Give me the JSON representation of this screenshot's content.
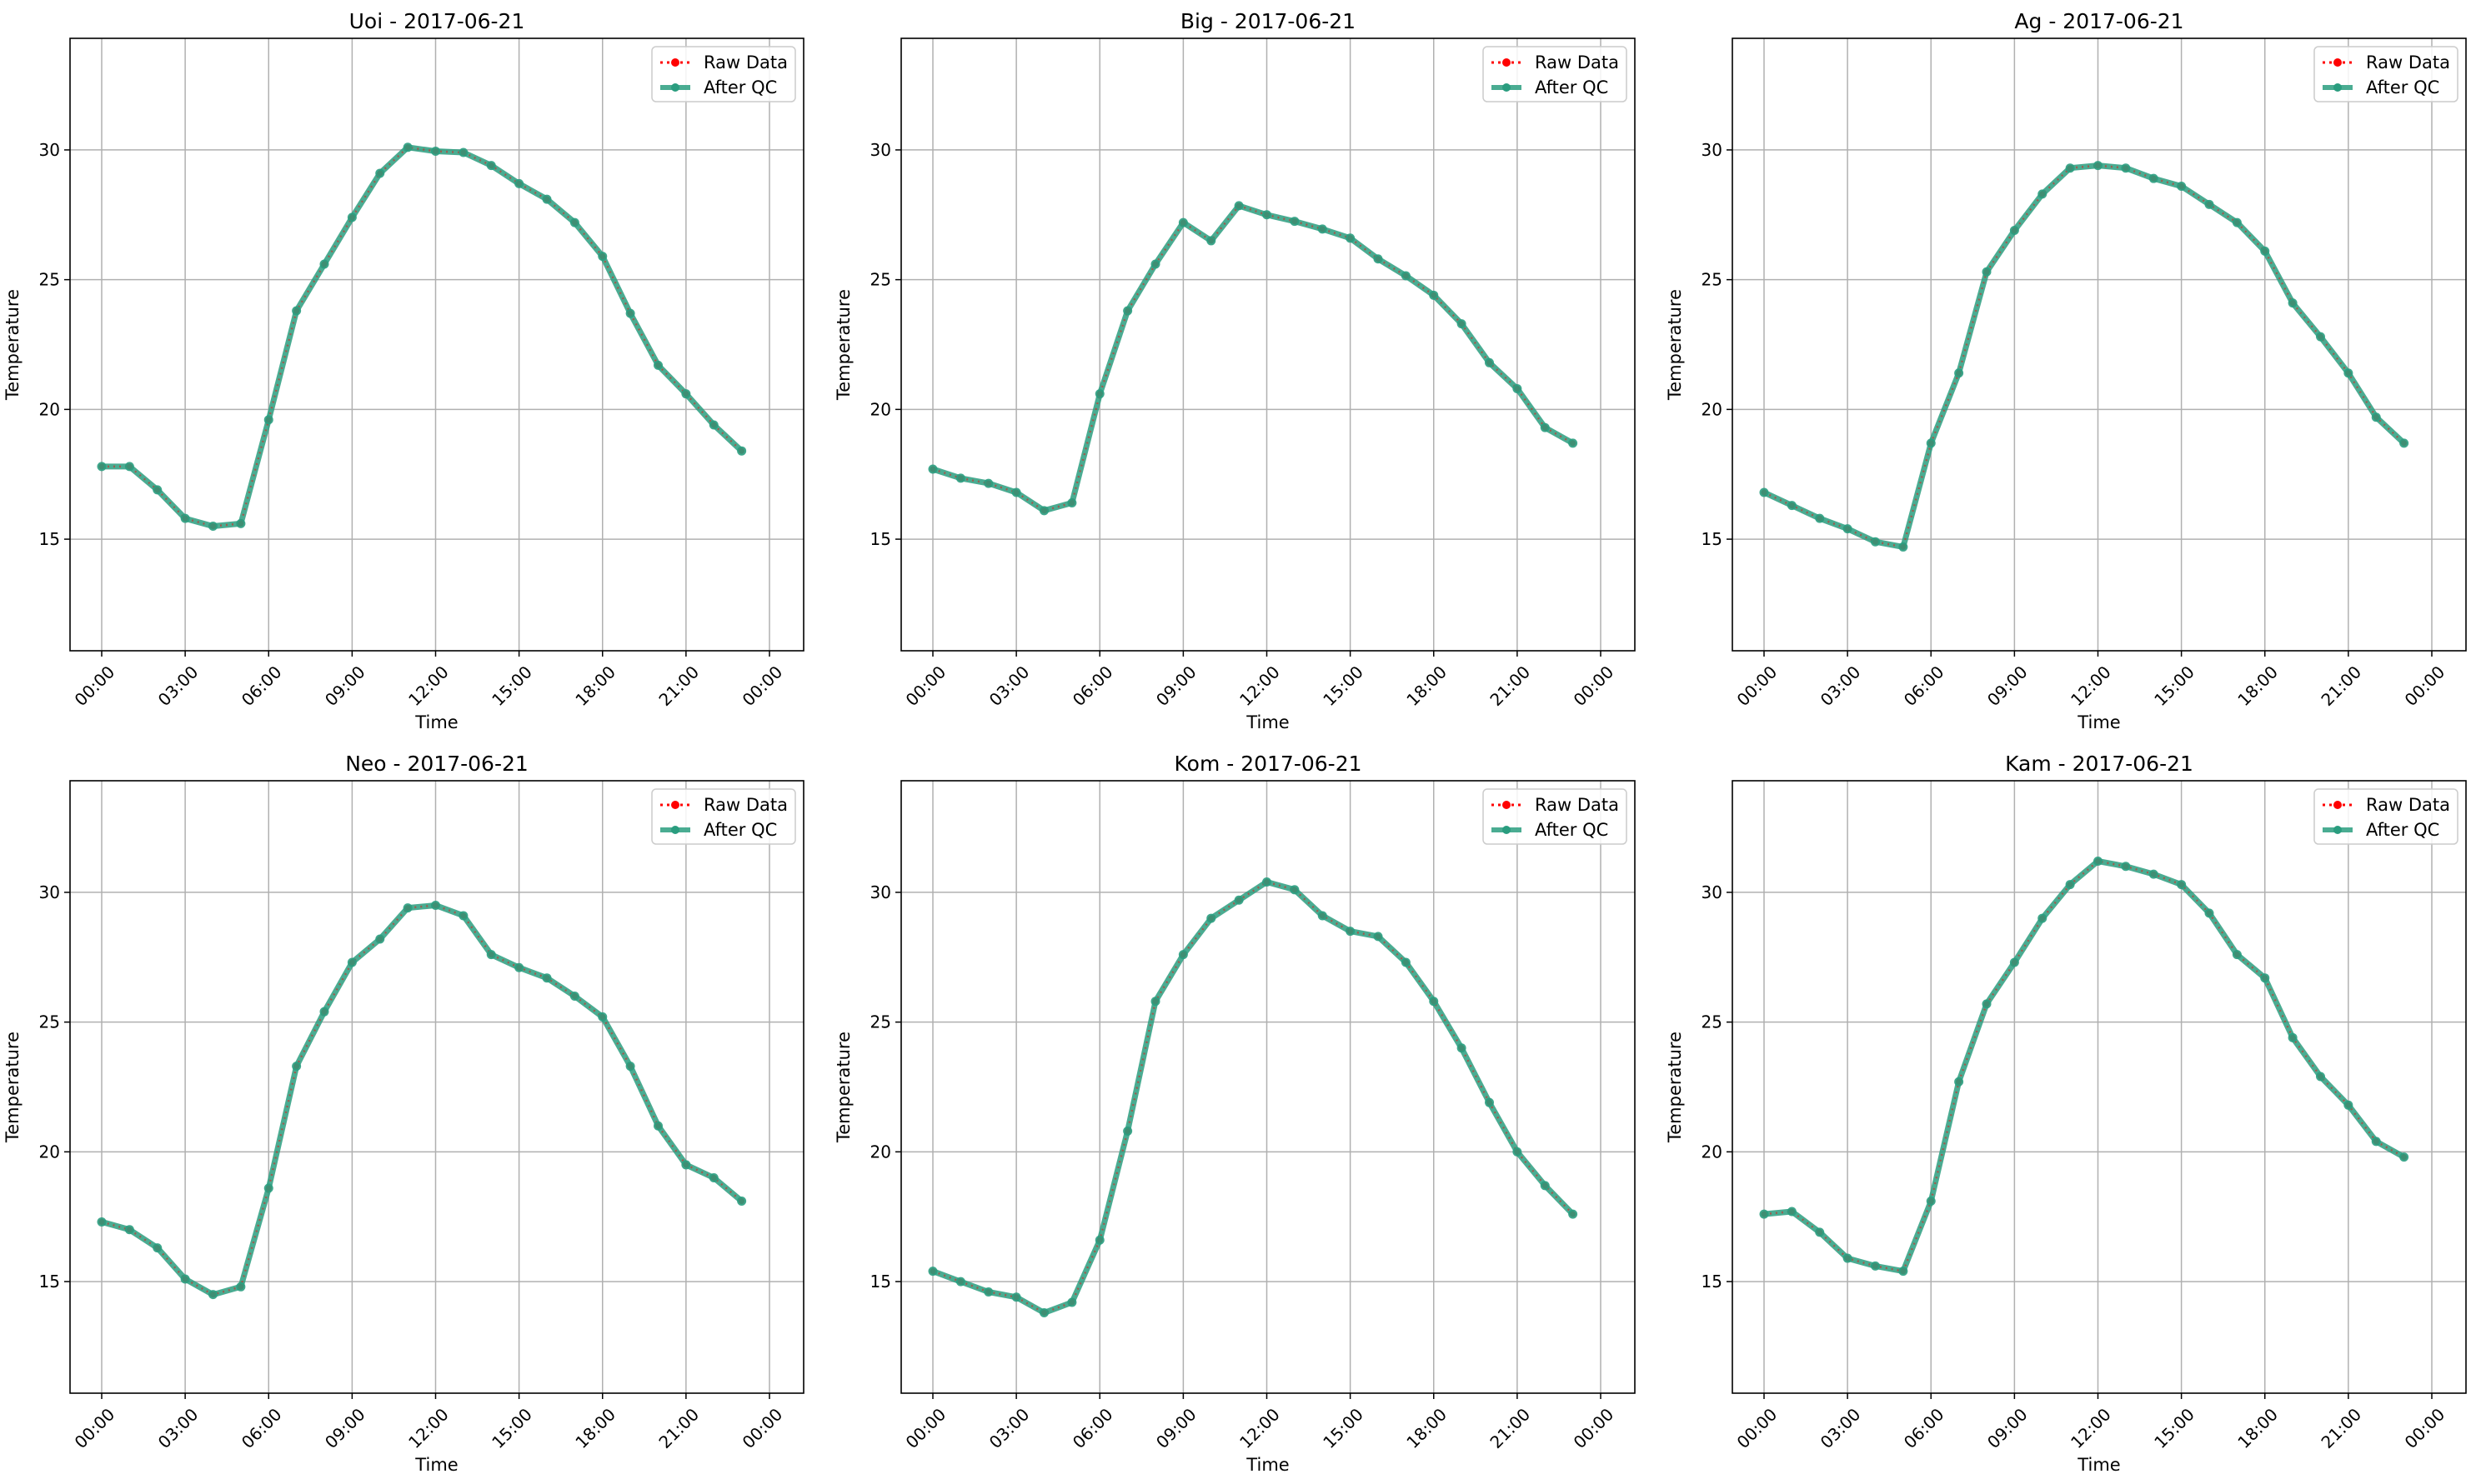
{
  "figure": {
    "xlabel": "Time",
    "ylabel": "Temperature"
  },
  "legend": [
    "Raw Data",
    "After QC"
  ],
  "colors": {
    "raw": "#ff0000",
    "qc": "#2a9d7f",
    "grid": "#b0b0b0"
  },
  "chart_data": [
    {
      "type": "line",
      "title": "Uoi - 2017-06-21",
      "xlabel": "Time",
      "ylabel": "Temperature",
      "x_ticks": [
        "00:00",
        "03:00",
        "06:00",
        "09:00",
        "12:00",
        "15:00",
        "18:00",
        "21:00",
        "00:00"
      ],
      "y_ticks": [
        15,
        20,
        25,
        30
      ],
      "ylim": [
        10.7,
        34.3
      ],
      "grid": true,
      "legend_position": "top-right",
      "x_hours": [
        0,
        1,
        2,
        3,
        4,
        5,
        6,
        7,
        8,
        9,
        10,
        11,
        12,
        13,
        14,
        15,
        16,
        17,
        18,
        19,
        20,
        21,
        22,
        23
      ],
      "series": [
        {
          "name": "Raw Data",
          "values": [
            17.8,
            17.8,
            16.9,
            15.8,
            15.5,
            15.6,
            19.6,
            23.8,
            25.6,
            27.4,
            29.1,
            30.1,
            29.95,
            29.9,
            29.4,
            28.7,
            28.1,
            27.2,
            25.9,
            23.7,
            21.7,
            20.6,
            19.4,
            18.4
          ]
        },
        {
          "name": "After QC",
          "values": [
            17.8,
            17.8,
            16.9,
            15.8,
            15.5,
            15.6,
            19.6,
            23.8,
            25.6,
            27.4,
            29.1,
            30.1,
            29.95,
            29.9,
            29.4,
            28.7,
            28.1,
            27.2,
            25.9,
            23.7,
            21.7,
            20.6,
            19.4,
            18.4
          ]
        }
      ]
    },
    {
      "type": "line",
      "title": "Big - 2017-06-21",
      "xlabel": "Time",
      "ylabel": "Temperature",
      "x_ticks": [
        "00:00",
        "03:00",
        "06:00",
        "09:00",
        "12:00",
        "15:00",
        "18:00",
        "21:00",
        "00:00"
      ],
      "y_ticks": [
        15,
        20,
        25,
        30
      ],
      "ylim": [
        10.7,
        34.3
      ],
      "grid": true,
      "legend_position": "top-right",
      "x_hours": [
        0,
        1,
        2,
        3,
        4,
        5,
        6,
        7,
        8,
        9,
        10,
        11,
        12,
        13,
        14,
        15,
        16,
        17,
        18,
        19,
        20,
        21,
        22,
        23
      ],
      "series": [
        {
          "name": "Raw Data",
          "values": [
            17.7,
            17.35,
            17.15,
            16.8,
            16.1,
            16.4,
            20.6,
            23.8,
            25.6,
            27.2,
            26.5,
            27.85,
            27.5,
            27.25,
            26.95,
            26.6,
            25.8,
            25.15,
            24.4,
            23.3,
            21.8,
            20.8,
            19.3,
            18.7
          ]
        },
        {
          "name": "After QC",
          "values": [
            17.7,
            17.35,
            17.15,
            16.8,
            16.1,
            16.4,
            20.6,
            23.8,
            25.6,
            27.2,
            26.5,
            27.85,
            27.5,
            27.25,
            26.95,
            26.6,
            25.8,
            25.15,
            24.4,
            23.3,
            21.8,
            20.8,
            19.3,
            18.7
          ]
        }
      ]
    },
    {
      "type": "line",
      "title": "Ag - 2017-06-21",
      "xlabel": "Time",
      "ylabel": "Temperature",
      "x_ticks": [
        "00:00",
        "03:00",
        "06:00",
        "09:00",
        "12:00",
        "15:00",
        "18:00",
        "21:00",
        "00:00"
      ],
      "y_ticks": [
        15,
        20,
        25,
        30
      ],
      "ylim": [
        10.7,
        34.3
      ],
      "grid": true,
      "legend_position": "top-right",
      "x_hours": [
        0,
        1,
        2,
        3,
        4,
        5,
        6,
        7,
        8,
        9,
        10,
        11,
        12,
        13,
        14,
        15,
        16,
        17,
        18,
        19,
        20,
        21,
        22,
        23
      ],
      "series": [
        {
          "name": "Raw Data",
          "values": [
            16.8,
            16.3,
            15.8,
            15.4,
            14.9,
            14.7,
            18.7,
            21.4,
            25.3,
            26.9,
            28.3,
            29.3,
            29.4,
            29.3,
            28.9,
            28.6,
            27.9,
            27.2,
            26.1,
            24.1,
            22.8,
            21.4,
            19.7,
            18.7
          ]
        },
        {
          "name": "After QC",
          "values": [
            16.8,
            16.3,
            15.8,
            15.4,
            14.9,
            14.7,
            18.7,
            21.4,
            25.3,
            26.9,
            28.3,
            29.3,
            29.4,
            29.3,
            28.9,
            28.6,
            27.9,
            27.2,
            26.1,
            24.1,
            22.8,
            21.4,
            19.7,
            18.7
          ]
        }
      ]
    },
    {
      "type": "line",
      "title": "Neo - 2017-06-21",
      "xlabel": "Time",
      "ylabel": "Temperature",
      "x_ticks": [
        "00:00",
        "03:00",
        "06:00",
        "09:00",
        "12:00",
        "15:00",
        "18:00",
        "21:00",
        "00:00"
      ],
      "y_ticks": [
        15,
        20,
        25,
        30
      ],
      "ylim": [
        10.7,
        34.3
      ],
      "grid": true,
      "legend_position": "top-right",
      "x_hours": [
        0,
        1,
        2,
        3,
        4,
        5,
        6,
        7,
        8,
        9,
        10,
        11,
        12,
        13,
        14,
        15,
        16,
        17,
        18,
        19,
        20,
        21,
        22,
        23
      ],
      "series": [
        {
          "name": "Raw Data",
          "values": [
            17.3,
            17.0,
            16.3,
            15.1,
            14.5,
            14.8,
            18.6,
            23.3,
            25.4,
            27.3,
            28.2,
            29.4,
            29.5,
            29.1,
            27.6,
            27.1,
            26.7,
            26.0,
            25.2,
            23.3,
            21.0,
            19.5,
            19.0,
            18.1
          ]
        },
        {
          "name": "After QC",
          "values": [
            17.3,
            17.0,
            16.3,
            15.1,
            14.5,
            14.8,
            18.6,
            23.3,
            25.4,
            27.3,
            28.2,
            29.4,
            29.5,
            29.1,
            27.6,
            27.1,
            26.7,
            26.0,
            25.2,
            23.3,
            21.0,
            19.5,
            19.0,
            18.1
          ]
        }
      ]
    },
    {
      "type": "line",
      "title": "Kom - 2017-06-21",
      "xlabel": "Time",
      "ylabel": "Temperature",
      "x_ticks": [
        "00:00",
        "03:00",
        "06:00",
        "09:00",
        "12:00",
        "15:00",
        "18:00",
        "21:00",
        "00:00"
      ],
      "y_ticks": [
        15,
        20,
        25,
        30
      ],
      "ylim": [
        10.7,
        34.3
      ],
      "grid": true,
      "legend_position": "top-right",
      "x_hours": [
        0,
        1,
        2,
        3,
        4,
        5,
        6,
        7,
        8,
        9,
        10,
        11,
        12,
        13,
        14,
        15,
        16,
        17,
        18,
        19,
        20,
        21,
        22,
        23
      ],
      "series": [
        {
          "name": "Raw Data",
          "values": [
            15.4,
            15.0,
            14.6,
            14.4,
            13.8,
            14.2,
            16.6,
            20.8,
            25.8,
            27.6,
            29.0,
            29.7,
            30.4,
            30.1,
            29.1,
            28.5,
            28.3,
            27.3,
            25.8,
            24.0,
            21.9,
            20.0,
            18.7,
            17.6
          ]
        },
        {
          "name": "After QC",
          "values": [
            15.4,
            15.0,
            14.6,
            14.4,
            13.8,
            14.2,
            16.6,
            20.8,
            25.8,
            27.6,
            29.0,
            29.7,
            30.4,
            30.1,
            29.1,
            28.5,
            28.3,
            27.3,
            25.8,
            24.0,
            21.9,
            20.0,
            18.7,
            17.6
          ]
        }
      ]
    },
    {
      "type": "line",
      "title": "Kam - 2017-06-21",
      "xlabel": "Time",
      "ylabel": "Temperature",
      "x_ticks": [
        "00:00",
        "03:00",
        "06:00",
        "09:00",
        "12:00",
        "15:00",
        "18:00",
        "21:00",
        "00:00"
      ],
      "y_ticks": [
        15,
        20,
        25,
        30
      ],
      "ylim": [
        10.7,
        34.3
      ],
      "grid": true,
      "legend_position": "top-right",
      "x_hours": [
        0,
        1,
        2,
        3,
        4,
        5,
        6,
        7,
        8,
        9,
        10,
        11,
        12,
        13,
        14,
        15,
        16,
        17,
        18,
        19,
        20,
        21,
        22,
        23
      ],
      "series": [
        {
          "name": "Raw Data",
          "values": [
            17.6,
            17.7,
            16.9,
            15.9,
            15.6,
            15.4,
            18.1,
            22.7,
            25.7,
            27.3,
            29.0,
            30.3,
            31.2,
            31.0,
            30.7,
            30.3,
            29.2,
            27.6,
            26.7,
            24.4,
            22.9,
            21.8,
            20.4,
            19.8
          ]
        },
        {
          "name": "After QC",
          "values": [
            17.6,
            17.7,
            16.9,
            15.9,
            15.6,
            15.4,
            18.1,
            22.7,
            25.7,
            27.3,
            29.0,
            30.3,
            31.2,
            31.0,
            30.7,
            30.3,
            29.2,
            27.6,
            26.7,
            24.4,
            22.9,
            21.8,
            20.4,
            19.8
          ]
        }
      ]
    }
  ]
}
